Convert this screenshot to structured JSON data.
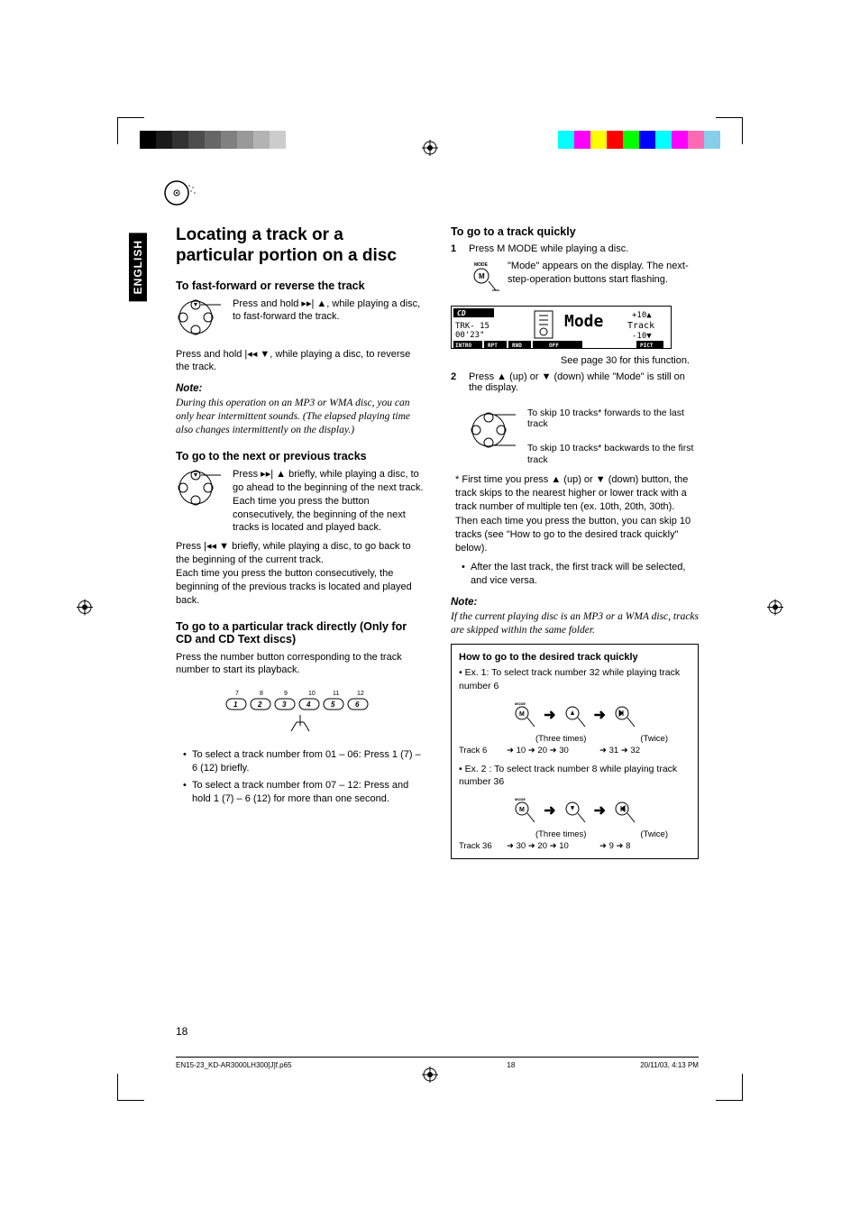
{
  "language_tab": "ENGLISH",
  "color_bar_left": [
    "#000000",
    "#1a1a1a",
    "#333333",
    "#4d4d4d",
    "#666666",
    "#808080",
    "#999999",
    "#b3b3b3",
    "#cccccc",
    "#ffffff"
  ],
  "color_bar_right": [
    "#00ffff",
    "#ff00ff",
    "#ffff00",
    "#ff0000",
    "#00ff00",
    "#0000ff",
    "#00ffff",
    "#ff00ff",
    "#ff69b4",
    "#87ceeb"
  ],
  "title": "Locating a track or a particular portion on a disc",
  "sec1": {
    "heading": "To fast-forward or reverse the track",
    "p1": "Press and hold ▸▸| ▲, while playing a disc, to fast-forward the track.",
    "p2": "Press and hold |◂◂ ▼, while playing a disc, to reverse the track.",
    "note_label": "Note:",
    "note": "During this operation on an MP3 or WMA disc, you can only hear intermittent sounds. (The elapsed playing time also changes intermittently on the display.)"
  },
  "sec2": {
    "heading": "To go to the next or previous tracks",
    "p1": "Press ▸▸| ▲ briefly, while playing a disc, to go ahead to the beginning of the next track.",
    "p2": "Each time you press the button consecutively, the beginning of the next tracks is located and played back.",
    "p3": "Press |◂◂ ▼ briefly, while playing a disc, to go back to the beginning of the current track.",
    "p4": "Each time you press the button consecutively, the beginning of the previous tracks is located and played back."
  },
  "sec3": {
    "heading": "To go to a particular track directly (Only for CD and CD Text discs)",
    "p1": "Press the number button corresponding to the track number to start its playback.",
    "b1": "To select a track number from 01 – 06: Press 1 (7) – 6 (12) briefly.",
    "b2": "To select a track number from 07 – 12: Press and hold 1 (7) – 6 (12) for more than one second."
  },
  "sec4": {
    "heading": "To go to a track quickly",
    "step1": "Press M MODE while playing a disc.",
    "step1_detail": "\"Mode\" appears on the display. The next-step-operation buttons start flashing.",
    "display": {
      "cd": "CD",
      "trk": "TRK- 15",
      "time": "00'23\"",
      "mode": "Mode",
      "plus10": "+10▲",
      "track_lbl": "Track",
      "minus10": "-10▼",
      "bottom": [
        "INTRO",
        "RPT",
        "RND",
        "OFF",
        "PICT"
      ]
    },
    "see_page": "See page 30 for this function.",
    "step2": "Press ▲ (up) or ▼ (down) while \"Mode\" is still on the display.",
    "skip_fwd": "To skip 10 tracks* forwards to the last track",
    "skip_bwd": "To skip 10 tracks* backwards to the first track",
    "star": "First time you press ▲ (up) or ▼ (down) button, the track skips to the nearest higher or lower track with a track number of multiple ten (ex. 10th, 20th, 30th).",
    "then": "Then each time you press the button, you can skip 10 tracks (see \"How to go to the desired track quickly\" below).",
    "after": "After the last track, the first track will be selected, and vice versa.",
    "note_label": "Note:",
    "note": "If the current playing disc is an MP3 or a WMA disc, tracks are skipped within the same folder."
  },
  "box": {
    "title": "How to go to the desired track quickly",
    "ex1_label": "• Ex. 1: To select track number 32 while playing track number 6",
    "three_times": "(Three times)",
    "twice": "(Twice)",
    "ex1_start": "Track 6",
    "ex1_seq": "➜ 10 ➜ 20 ➜ 30",
    "ex1_seq2": "➜ 31 ➜ 32",
    "ex2_label": "• Ex. 2 : To select track number 8 while playing track number 36",
    "ex2_start": "Track 36",
    "ex2_seq": "➜ 30 ➜ 20 ➜ 10",
    "ex2_seq2": "➜ 9 ➜ 8"
  },
  "page_number": "18",
  "footer": {
    "file": "EN15-23_KD-AR3000LH300[J]f.p65",
    "page": "18",
    "date": "20/11/03, 4:13 PM"
  }
}
